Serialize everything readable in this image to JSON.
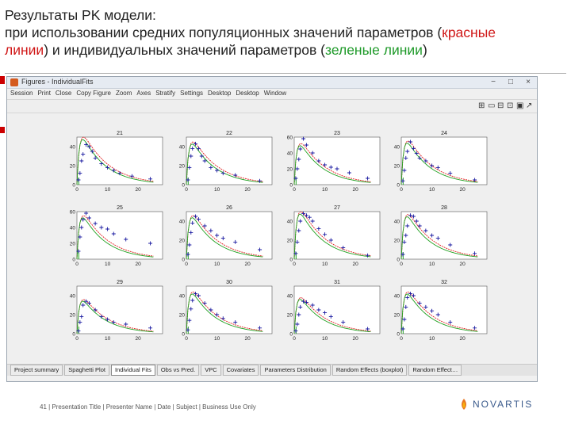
{
  "slide": {
    "title_line1": "Результаты PK  модели:",
    "title_line2a": "при использовании средних популяционных значений параметров (",
    "title_red": "красные",
    "title_line3a": "линии",
    "title_line3b": ") и индивидуальных значений параметров (",
    "title_green": "зеленые линии",
    "title_line3c": ")",
    "footer": "41 | Presentation Title | Presenter Name | Date | Subject | Business Use Only",
    "logo_text": "NOVARTIS"
  },
  "window": {
    "title": "Figures - IndividualFits",
    "controls": [
      "−",
      "□",
      "×"
    ]
  },
  "menu": [
    "Session",
    "Print",
    "Close",
    "Copy Figure",
    "Zoom",
    "Axes",
    "Stratify",
    "Settings",
    "Desktop",
    "Desktop",
    "Window"
  ],
  "toolbar_glyphs": [
    "⊞",
    "▭",
    "⊟",
    "⊡",
    "▣",
    "↗"
  ],
  "tabs": [
    {
      "label": "Project summary",
      "active": false
    },
    {
      "label": "Spaghetti Plot",
      "active": false
    },
    {
      "label": "Individual Fits",
      "active": true
    },
    {
      "label": "Obs vs Pred.",
      "active": false
    },
    {
      "label": "VPC",
      "active": false
    },
    {
      "label": "Covariates",
      "active": false
    },
    {
      "label": "Parameters Distribution",
      "active": false
    },
    {
      "label": "Random Effects (boxplot)",
      "active": false
    },
    {
      "label": "Random Effect…",
      "active": false
    }
  ],
  "colors": {
    "red_line": "#e02020",
    "green_line": "#20a020",
    "obs": "#1a1aa0"
  },
  "panels": [
    {
      "id": "21",
      "ylim": [
        0,
        50
      ],
      "yticks": [
        "40",
        "20",
        "0"
      ],
      "xticks": [
        "0",
        "10",
        "20"
      ],
      "cmax": 50,
      "obs": [
        [
          0.5,
          5
        ],
        [
          1,
          12
        ],
        [
          1.5,
          25
        ],
        [
          2,
          32
        ],
        [
          3,
          42
        ],
        [
          4,
          40
        ],
        [
          5,
          35
        ],
        [
          6,
          28
        ],
        [
          8,
          22
        ],
        [
          10,
          18
        ],
        [
          12,
          15
        ],
        [
          14,
          12
        ],
        [
          18,
          9
        ],
        [
          24,
          6
        ]
      ]
    },
    {
      "id": "22",
      "ylim": [
        0,
        50
      ],
      "yticks": [
        "40",
        "20",
        "0"
      ],
      "xticks": [
        "0",
        "10",
        "20"
      ],
      "cmax": 45,
      "obs": [
        [
          0.5,
          5
        ],
        [
          1,
          18
        ],
        [
          1.5,
          30
        ],
        [
          2,
          38
        ],
        [
          3,
          43
        ],
        [
          4,
          38
        ],
        [
          5,
          30
        ],
        [
          6,
          25
        ],
        [
          8,
          18
        ],
        [
          10,
          15
        ],
        [
          12,
          12
        ],
        [
          16,
          10
        ],
        [
          24,
          4
        ]
      ]
    },
    {
      "id": "23",
      "ylim": [
        0,
        60
      ],
      "yticks": [
        "60",
        "40",
        "20",
        "0"
      ],
      "xticks": [
        "0",
        "10",
        "20"
      ],
      "cmax": 52,
      "obs": [
        [
          0.5,
          8
        ],
        [
          1,
          20
        ],
        [
          1.5,
          32
        ],
        [
          2,
          45
        ],
        [
          3,
          58
        ],
        [
          4,
          50
        ],
        [
          6,
          40
        ],
        [
          8,
          30
        ],
        [
          10,
          25
        ],
        [
          12,
          22
        ],
        [
          14,
          20
        ],
        [
          18,
          15
        ],
        [
          24,
          8
        ]
      ]
    },
    {
      "id": "24",
      "ylim": [
        0,
        50
      ],
      "yticks": [
        "40",
        "20",
        "0"
      ],
      "xticks": [
        "0",
        "10",
        "20"
      ],
      "cmax": 46,
      "obs": [
        [
          0.5,
          4
        ],
        [
          1,
          15
        ],
        [
          1.5,
          28
        ],
        [
          2,
          35
        ],
        [
          3,
          45
        ],
        [
          4,
          38
        ],
        [
          5,
          33
        ],
        [
          6,
          28
        ],
        [
          8,
          25
        ],
        [
          10,
          20
        ],
        [
          12,
          18
        ],
        [
          16,
          12
        ],
        [
          24,
          5
        ]
      ]
    },
    {
      "id": "25",
      "ylim": [
        0,
        60
      ],
      "yticks": [
        "60",
        "40",
        "20",
        "0"
      ],
      "xticks": [
        "0",
        "10",
        "20"
      ],
      "cmax": 55,
      "obs": [
        [
          0.5,
          10
        ],
        [
          1,
          28
        ],
        [
          1.5,
          40
        ],
        [
          2,
          50
        ],
        [
          3,
          58
        ],
        [
          4,
          52
        ],
        [
          6,
          45
        ],
        [
          8,
          40
        ],
        [
          10,
          38
        ],
        [
          12,
          32
        ],
        [
          16,
          25
        ],
        [
          24,
          20
        ]
      ]
    },
    {
      "id": "26",
      "ylim": [
        0,
        50
      ],
      "yticks": [
        "40",
        "20",
        "0"
      ],
      "xticks": [
        "0",
        "10",
        "20"
      ],
      "cmax": 46,
      "obs": [
        [
          0.5,
          5
        ],
        [
          1,
          15
        ],
        [
          1.5,
          28
        ],
        [
          2,
          38
        ],
        [
          3,
          45
        ],
        [
          4,
          42
        ],
        [
          6,
          35
        ],
        [
          8,
          30
        ],
        [
          10,
          25
        ],
        [
          12,
          22
        ],
        [
          16,
          18
        ],
        [
          24,
          10
        ]
      ]
    },
    {
      "id": "27",
      "ylim": [
        0,
        50
      ],
      "yticks": [
        "40",
        "20",
        "0"
      ],
      "xticks": [
        "0",
        "10",
        "20"
      ],
      "cmax": 50,
      "obs": [
        [
          0.5,
          6
        ],
        [
          1,
          18
        ],
        [
          1.5,
          30
        ],
        [
          2,
          40
        ],
        [
          3,
          48
        ],
        [
          4,
          46
        ],
        [
          5,
          44
        ],
        [
          6,
          40
        ],
        [
          8,
          32
        ],
        [
          10,
          26
        ],
        [
          12,
          20
        ],
        [
          16,
          12
        ],
        [
          24,
          4
        ]
      ]
    },
    {
      "id": "28",
      "ylim": [
        0,
        50
      ],
      "yticks": [
        "40",
        "20",
        "0"
      ],
      "xticks": [
        "0",
        "10",
        "20"
      ],
      "cmax": 47,
      "obs": [
        [
          0.5,
          5
        ],
        [
          1,
          18
        ],
        [
          1.5,
          25
        ],
        [
          2,
          35
        ],
        [
          3,
          46
        ],
        [
          4,
          45
        ],
        [
          5,
          40
        ],
        [
          6,
          35
        ],
        [
          8,
          30
        ],
        [
          10,
          25
        ],
        [
          12,
          22
        ],
        [
          16,
          15
        ],
        [
          24,
          6
        ]
      ]
    },
    {
      "id": "29",
      "ylim": [
        0,
        50
      ],
      "yticks": [
        "40",
        "20",
        "0"
      ],
      "xticks": [
        "0",
        "10",
        "20"
      ],
      "cmax": 36,
      "obs": [
        [
          0.5,
          3
        ],
        [
          1,
          12
        ],
        [
          1.5,
          18
        ],
        [
          2,
          30
        ],
        [
          3,
          34
        ],
        [
          4,
          32
        ],
        [
          6,
          25
        ],
        [
          8,
          18
        ],
        [
          10,
          15
        ],
        [
          12,
          12
        ],
        [
          16,
          10
        ],
        [
          24,
          6
        ]
      ]
    },
    {
      "id": "30",
      "ylim": [
        0,
        50
      ],
      "yticks": [
        "40",
        "20",
        "0"
      ],
      "xticks": [
        "0",
        "10",
        "20"
      ],
      "cmax": 44,
      "obs": [
        [
          0.5,
          4
        ],
        [
          1,
          14
        ],
        [
          1.5,
          26
        ],
        [
          2,
          35
        ],
        [
          3,
          42
        ],
        [
          4,
          40
        ],
        [
          6,
          32
        ],
        [
          8,
          25
        ],
        [
          10,
          20
        ],
        [
          12,
          16
        ],
        [
          16,
          12
        ],
        [
          24,
          6
        ]
      ]
    },
    {
      "id": "31",
      "ylim": [
        0,
        50
      ],
      "yticks": [
        "40",
        "20",
        "0"
      ],
      "xticks": [
        "0",
        "10",
        "20"
      ],
      "cmax": 38,
      "obs": [
        [
          0.5,
          3
        ],
        [
          1,
          10
        ],
        [
          1.5,
          20
        ],
        [
          2,
          28
        ],
        [
          3,
          34
        ],
        [
          4,
          33
        ],
        [
          6,
          30
        ],
        [
          8,
          25
        ],
        [
          10,
          22
        ],
        [
          12,
          18
        ],
        [
          16,
          12
        ],
        [
          24,
          5
        ]
      ]
    },
    {
      "id": "32",
      "ylim": [
        0,
        50
      ],
      "yticks": [
        "40",
        "20",
        "0"
      ],
      "xticks": [
        "0",
        "10",
        "20"
      ],
      "cmax": 44,
      "obs": [
        [
          0.5,
          5
        ],
        [
          1,
          15
        ],
        [
          1.5,
          28
        ],
        [
          2,
          38
        ],
        [
          3,
          42
        ],
        [
          4,
          40
        ],
        [
          6,
          32
        ],
        [
          8,
          28
        ],
        [
          10,
          24
        ],
        [
          12,
          20
        ],
        [
          16,
          12
        ],
        [
          24,
          6
        ]
      ]
    }
  ]
}
